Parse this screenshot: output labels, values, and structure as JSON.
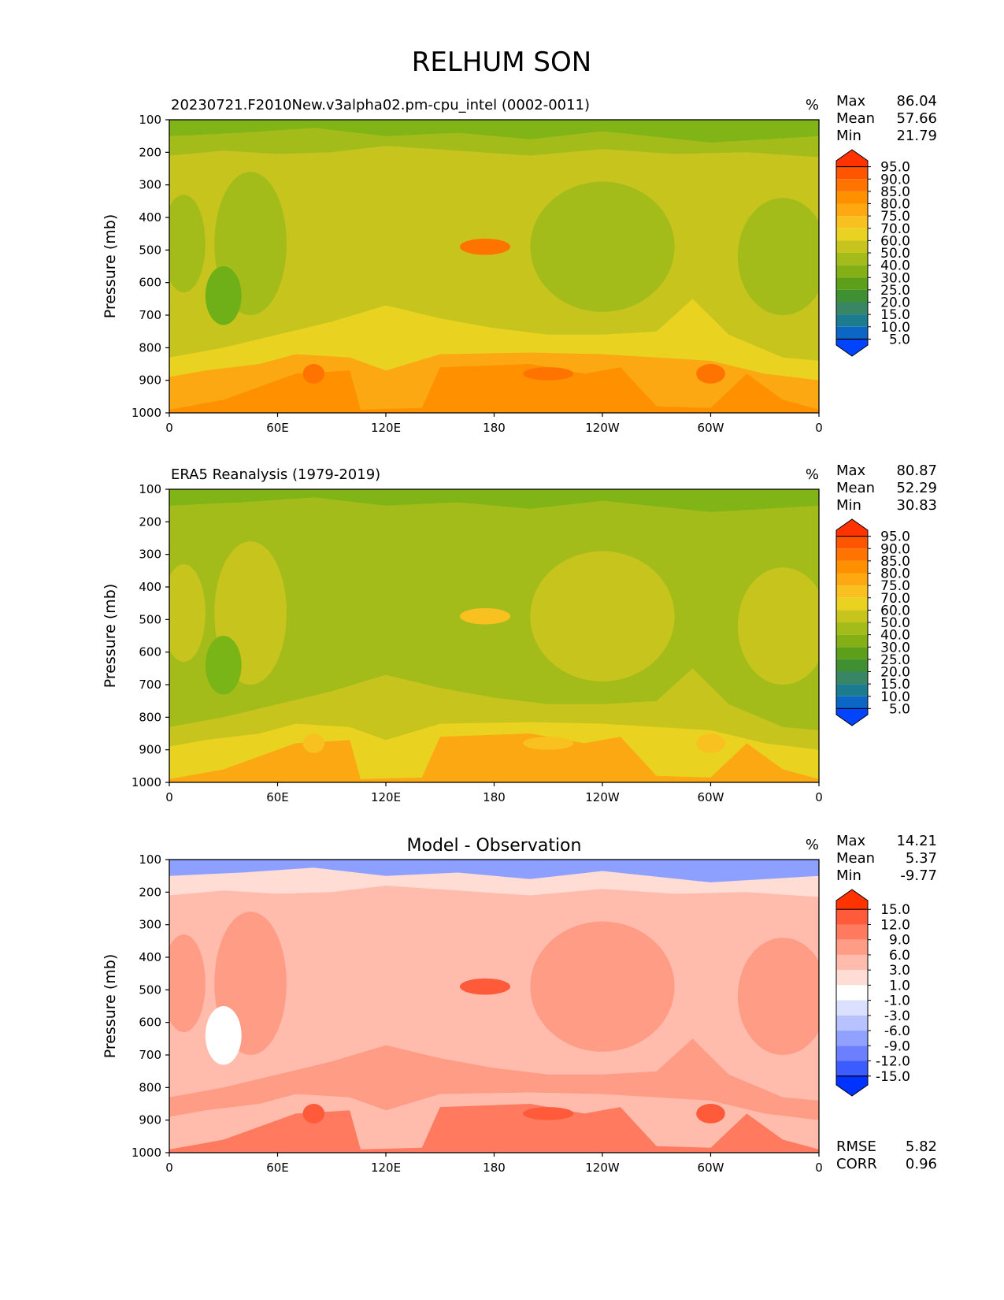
{
  "figure": {
    "title": "RELHUM SON"
  },
  "chart_data": [
    {
      "type": "heatmap",
      "kind": "field",
      "title": "20230721.F2010New.v3alpha02.pm-cpu_intel (0002-0011)",
      "units": "%",
      "ylabel": "Pressure (mb)",
      "xlabel": "",
      "x_ticks": [
        "0",
        "60E",
        "120E",
        "180",
        "120W",
        "60W",
        "0"
      ],
      "y_ticks": [
        "100",
        "200",
        "300",
        "400",
        "500",
        "600",
        "700",
        "800",
        "900",
        "1000"
      ],
      "xlim": [
        0,
        360
      ],
      "ylim": [
        100,
        1000
      ],
      "stats": {
        "labels": [
          "Max",
          "Mean",
          "Min"
        ],
        "values": [
          "86.04",
          "57.66",
          "21.79"
        ]
      },
      "colorbar": {
        "levels": [
          "95.0",
          "90.0",
          "85.0",
          "80.0",
          "75.0",
          "70.0",
          "60.0",
          "50.0",
          "40.0",
          "30.0",
          "25.0",
          "20.0",
          "15.0",
          "10.0",
          "5.0"
        ],
        "colors": [
          "#ff3300",
          "#ff5500",
          "#ff7300",
          "#ff9000",
          "#ffa811",
          "#f8c120",
          "#ead220",
          "#c8c41e",
          "#a4bc1a",
          "#84b016",
          "#5e9f1a",
          "#3f9032",
          "#388666",
          "#1d7b8f",
          "#0b66c6",
          "#0044ff"
        ]
      },
      "palette": {
        "top": "#80b417",
        "upper": "#a4bc1a",
        "mid": "#c8c41e",
        "moist_col": "#a4bc1a",
        "low": "#ead220",
        "bl": "#fba812",
        "sfc": "#ff9000",
        "peak": "#ff7300",
        "dry_spot": "#6fb018"
      }
    },
    {
      "type": "heatmap",
      "kind": "field",
      "title": "ERA5 Reanalysis (1979-2019)",
      "units": "%",
      "ylabel": "Pressure (mb)",
      "xlabel": "",
      "x_ticks": [
        "0",
        "60E",
        "120E",
        "180",
        "120W",
        "60W",
        "0"
      ],
      "y_ticks": [
        "100",
        "200",
        "300",
        "400",
        "500",
        "600",
        "700",
        "800",
        "900",
        "1000"
      ],
      "xlim": [
        0,
        360
      ],
      "ylim": [
        100,
        1000
      ],
      "stats": {
        "labels": [
          "Max",
          "Mean",
          "Min"
        ],
        "values": [
          "80.87",
          "52.29",
          "30.83"
        ]
      },
      "colorbar": {
        "levels": [
          "95.0",
          "90.0",
          "85.0",
          "80.0",
          "75.0",
          "70.0",
          "60.0",
          "50.0",
          "40.0",
          "30.0",
          "25.0",
          "20.0",
          "15.0",
          "10.0",
          "5.0"
        ],
        "colors": [
          "#ff3300",
          "#ff5500",
          "#ff7300",
          "#ff9000",
          "#ffa811",
          "#f8c120",
          "#ead220",
          "#c8c41e",
          "#a4bc1a",
          "#84b016",
          "#5e9f1a",
          "#3f9032",
          "#388666",
          "#1d7b8f",
          "#0b66c6",
          "#0044ff"
        ]
      },
      "palette": {
        "top": "#80b417",
        "upper": "#a4bc1a",
        "mid": "#a4bc1a",
        "moist_col": "#c8c41e",
        "low": "#c8c41e",
        "bl": "#ead220",
        "sfc": "#fba812",
        "peak": "#f8c120",
        "dry_spot": "#7ab517"
      }
    },
    {
      "type": "heatmap",
      "kind": "diff",
      "title": "Model - Observation",
      "units": "%",
      "ylabel": "Pressure (mb)",
      "xlabel": "",
      "x_ticks": [
        "0",
        "60E",
        "120E",
        "180",
        "120W",
        "60W",
        "0"
      ],
      "y_ticks": [
        "100",
        "200",
        "300",
        "400",
        "500",
        "600",
        "700",
        "800",
        "900",
        "1000"
      ],
      "xlim": [
        0,
        360
      ],
      "ylim": [
        100,
        1000
      ],
      "stats": {
        "labels": [
          "Max",
          "Mean",
          "Min"
        ],
        "values": [
          "14.21",
          "5.37",
          "-9.77"
        ]
      },
      "metrics": {
        "labels": [
          "RMSE",
          "CORR"
        ],
        "values": [
          "5.82",
          "0.96"
        ]
      },
      "colorbar": {
        "levels": [
          "15.0",
          "12.0",
          "9.0",
          "6.0",
          "3.0",
          "1.0",
          "-1.0",
          "-3.0",
          "-6.0",
          "-9.0",
          "-12.0",
          "-15.0"
        ],
        "colors": [
          "#ff3300",
          "#ff5a3a",
          "#ff7a5e",
          "#ff9c86",
          "#ffbcad",
          "#ffdcd4",
          "#ffffff",
          "#dce0ff",
          "#b8c2ff",
          "#90a1ff",
          "#6c80ff",
          "#3d5cff",
          "#0033ff"
        ]
      },
      "palette": {
        "top": "#8ea0ff",
        "upper": "#ffdcd4",
        "mid": "#ffbcad",
        "moist_col": "#ff9c86",
        "low": "#ff9c86",
        "bl": "#ffbcad",
        "sfc": "#ff7a5e",
        "peak": "#ff5a3a",
        "dry_spot": "#ffffff"
      }
    }
  ]
}
